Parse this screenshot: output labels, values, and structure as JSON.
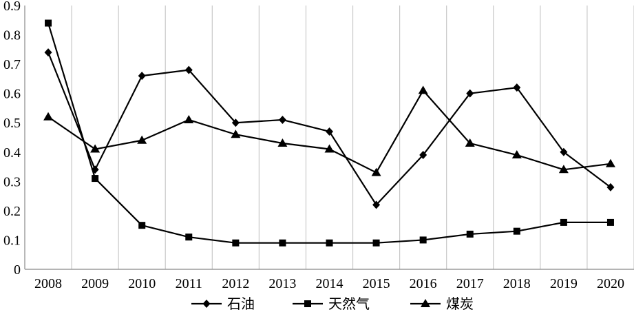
{
  "chart_data": {
    "type": "line",
    "title": "",
    "xlabel": "",
    "ylabel": "",
    "x": [
      "2008",
      "2009",
      "2010",
      "2011",
      "2012",
      "2013",
      "2014",
      "2015",
      "2016",
      "2017",
      "2018",
      "2019",
      "2020"
    ],
    "ylim": [
      0,
      0.9
    ],
    "yticks": [
      "0",
      "0.1",
      "0.2",
      "0.3",
      "0.4",
      "0.5",
      "0.6",
      "0.7",
      "0.8",
      "0.9"
    ],
    "grid": "vertical",
    "legend": "bottom",
    "series": [
      {
        "name": "石油",
        "marker": "diamond",
        "values": [
          0.74,
          0.34,
          0.66,
          0.68,
          0.5,
          0.51,
          0.47,
          0.22,
          0.39,
          0.6,
          0.62,
          0.4,
          0.28
        ]
      },
      {
        "name": "天然气",
        "marker": "square",
        "values": [
          0.84,
          0.31,
          0.15,
          0.11,
          0.09,
          0.09,
          0.09,
          0.09,
          0.1,
          0.12,
          0.13,
          0.16,
          0.16
        ]
      },
      {
        "name": "煤炭",
        "marker": "triangle",
        "values": [
          0.52,
          0.41,
          0.44,
          0.51,
          0.46,
          0.43,
          0.41,
          0.33,
          0.61,
          0.43,
          0.39,
          0.34,
          0.36
        ]
      }
    ]
  }
}
